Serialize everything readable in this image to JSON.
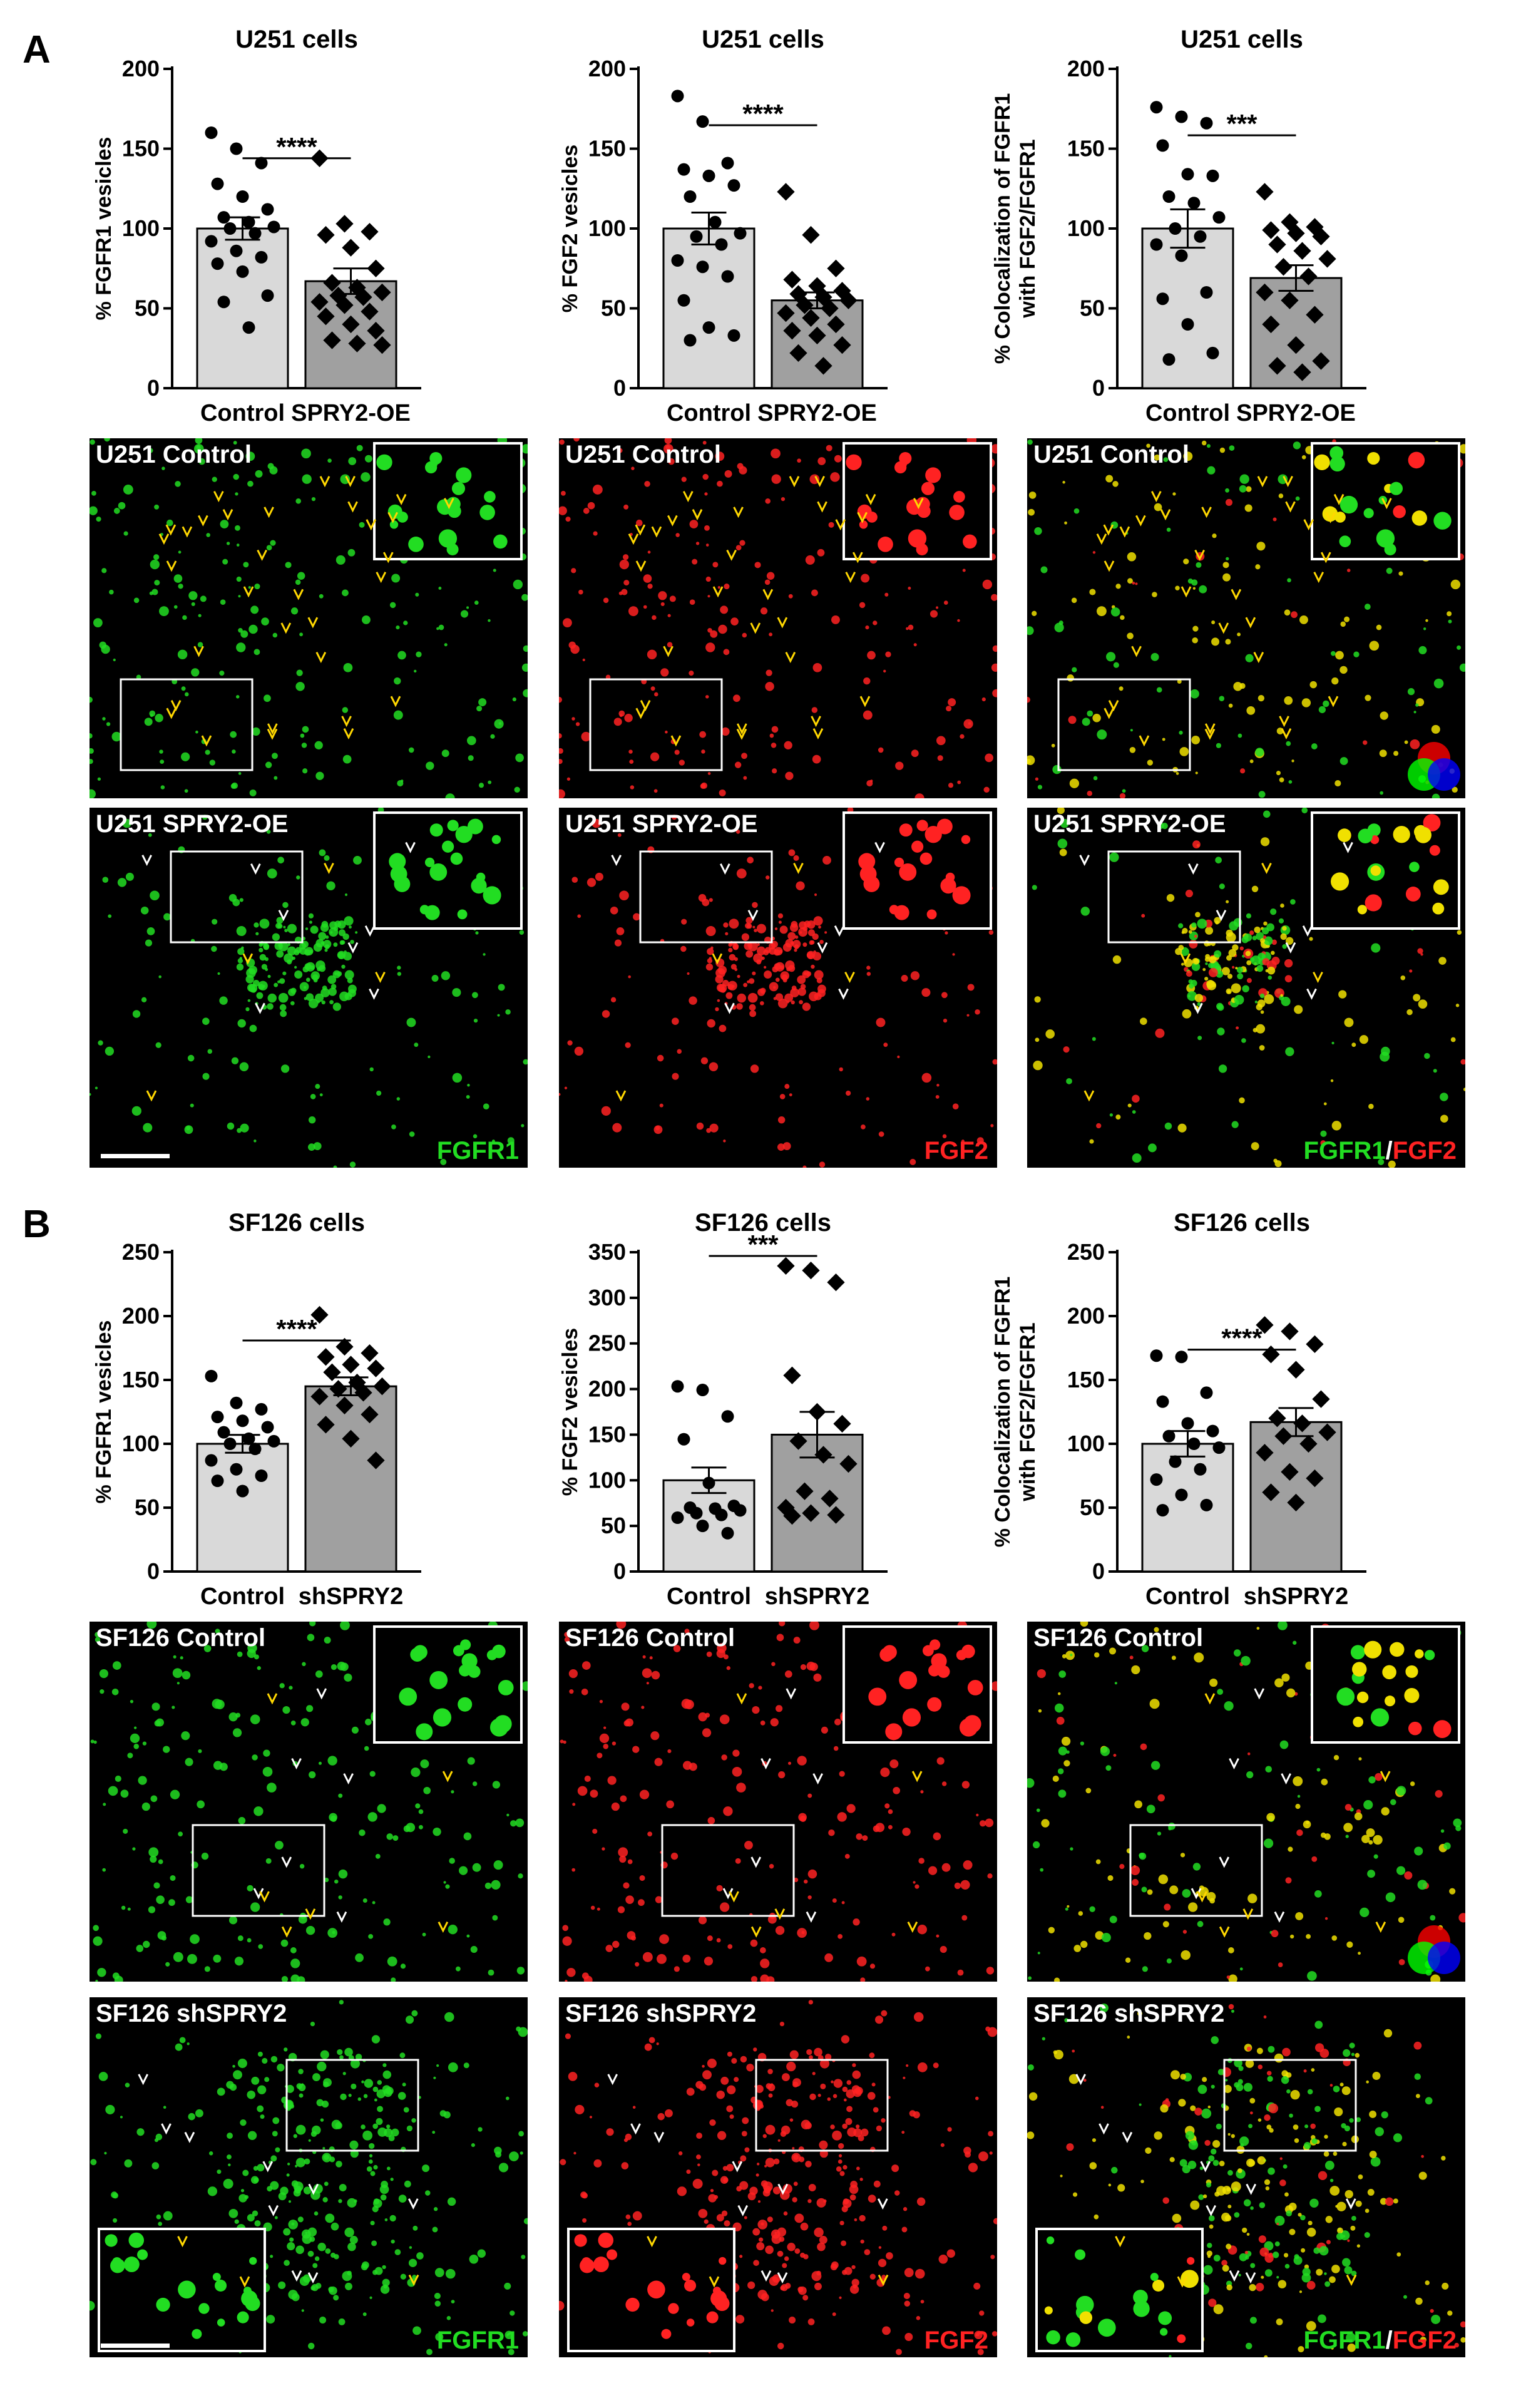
{
  "panels": {
    "A": "A",
    "B": "B"
  },
  "colors": {
    "control_bar": "#d9d9d9",
    "treated_bar": "#a0a0a0",
    "green": "#22dd22",
    "red": "#ff2222",
    "yellow": "#f0e000",
    "arrow_yellow": "#ffd700"
  },
  "chart_data": [
    {
      "type": "bar",
      "title": "U251 cells",
      "ylabel": "% FGFR1 vesicles",
      "categories": [
        "Control",
        "SPRY2-OE"
      ],
      "values": [
        100,
        67
      ],
      "sem": [
        7,
        8
      ],
      "ylim": [
        0,
        200
      ],
      "yticks": [
        "0",
        "50",
        "100",
        "150",
        "200"
      ],
      "significance": "****",
      "points": [
        [
          160,
          150,
          141,
          128,
          120,
          112,
          107,
          104,
          101,
          100,
          97,
          92,
          86,
          82,
          78,
          73,
          58,
          54,
          38
        ],
        [
          144,
          103,
          98,
          96,
          88,
          75,
          66,
          63,
          60,
          58,
          57,
          54,
          52,
          48,
          45,
          40,
          36,
          30,
          28,
          27
        ]
      ]
    },
    {
      "type": "bar",
      "title": "U251 cells",
      "ylabel": "% FGF2 vesicles",
      "categories": [
        "Control",
        "SPRY2-OE"
      ],
      "values": [
        100,
        55
      ],
      "sem": [
        10,
        5
      ],
      "ylim": [
        0,
        200
      ],
      "yticks": [
        "0",
        "50",
        "100",
        "150",
        "200"
      ],
      "significance": "****",
      "points": [
        [
          183,
          167,
          141,
          137,
          133,
          127,
          120,
          104,
          97,
          95,
          90,
          80,
          76,
          70,
          55,
          38,
          33,
          30
        ],
        [
          123,
          96,
          75,
          68,
          64,
          61,
          59,
          57,
          55,
          52,
          50,
          47,
          44,
          40,
          36,
          33,
          27,
          22,
          14
        ]
      ]
    },
    {
      "type": "bar",
      "title": "U251 cells",
      "ylabel": "% Colocalization of FGFR1 with FGF2/FGFR1",
      "categories": [
        "Control",
        "SPRY2-OE"
      ],
      "values": [
        100,
        69
      ],
      "sem": [
        12,
        8
      ],
      "ylim": [
        0,
        200
      ],
      "yticks": [
        "0",
        "50",
        "100",
        "150",
        "200"
      ],
      "significance": "***",
      "points": [
        [
          176,
          170,
          166,
          152,
          134,
          133,
          120,
          116,
          107,
          100,
          95,
          90,
          83,
          60,
          56,
          40,
          22,
          18
        ],
        [
          123,
          104,
          101,
          99,
          97,
          95,
          90,
          86,
          81,
          76,
          70,
          60,
          55,
          46,
          40,
          27,
          17,
          14,
          10
        ]
      ]
    },
    {
      "type": "bar",
      "title": "SF126 cells",
      "ylabel": "% FGFR1 vesicles",
      "categories": [
        "Control",
        "shSPRY2"
      ],
      "values": [
        100,
        145
      ],
      "sem": [
        7,
        7
      ],
      "ylim": [
        0,
        250
      ],
      "yticks": [
        "0",
        "50",
        "100",
        "150",
        "200",
        "250"
      ],
      "significance": "****",
      "points": [
        [
          153,
          132,
          127,
          121,
          118,
          113,
          109,
          104,
          102,
          100,
          96,
          87,
          80,
          75,
          71,
          63
        ],
        [
          201,
          176,
          171,
          168,
          162,
          159,
          156,
          148,
          145,
          143,
          140,
          137,
          130,
          123,
          115,
          104,
          87
        ]
      ]
    },
    {
      "type": "bar",
      "title": "SF126 cells",
      "ylabel": "% FGF2 vesicles",
      "categories": [
        "Control",
        "shSPRY2"
      ],
      "values": [
        100,
        150
      ],
      "sem": [
        14,
        25
      ],
      "ylim": [
        0,
        350
      ],
      "yticks": [
        "0",
        "50",
        "100",
        "150",
        "200",
        "250",
        "300",
        "350"
      ],
      "significance": "***",
      "points": [
        [
          203,
          199,
          170,
          145,
          97,
          72,
          70,
          69,
          67,
          64,
          62,
          59,
          50,
          42
        ],
        [
          335,
          330,
          317,
          215,
          175,
          162,
          143,
          128,
          118,
          88,
          80,
          70,
          64,
          62,
          61
        ]
      ]
    },
    {
      "type": "bar",
      "title": "SF126 cells",
      "ylabel": "% Colocalization of FGFR1 with FGF2/FGFR1",
      "categories": [
        "Control",
        "shSPRY2"
      ],
      "values": [
        100,
        117
      ],
      "sem": [
        10,
        11
      ],
      "ylim": [
        0,
        250
      ],
      "yticks": [
        "0",
        "50",
        "100",
        "150",
        "200",
        "250"
      ],
      "significance": "****",
      "points": [
        [
          169,
          168,
          140,
          133,
          116,
          110,
          106,
          100,
          97,
          86,
          80,
          72,
          60,
          52,
          48
        ],
        [
          193,
          188,
          178,
          170,
          158,
          135,
          120,
          116,
          109,
          106,
          100,
          93,
          78,
          73,
          62,
          54
        ]
      ]
    }
  ],
  "micrographs": [
    {
      "label": "U251 Control",
      "channel": "green",
      "inset": "top-right",
      "box": "bottom-left",
      "channels": [
        {
          "text": "",
          "c": "g"
        }
      ],
      "merge_icon": false
    },
    {
      "label": "U251 Control",
      "channel": "red",
      "inset": "top-right",
      "box": "bottom-left",
      "channels": [
        {
          "text": "",
          "c": "r"
        }
      ],
      "merge_icon": false
    },
    {
      "label": "U251 Control",
      "channel": "merge",
      "inset": "top-right",
      "box": "bottom-left",
      "channels": [
        {
          "text": "",
          "c": "g"
        }
      ],
      "merge_icon": true
    },
    {
      "label": "U251 SPRY2-OE",
      "channel": "green",
      "inset": "top-right",
      "box": "top-left",
      "channels": [
        {
          "text": "FGFR1",
          "c": "g"
        }
      ],
      "merge_icon": false,
      "scale_bar": true
    },
    {
      "label": "U251 SPRY2-OE",
      "channel": "red",
      "inset": "top-right",
      "box": "top-left",
      "channels": [
        {
          "text": "FGF2",
          "c": "r"
        }
      ],
      "merge_icon": false
    },
    {
      "label": "U251 SPRY2-OE",
      "channel": "merge",
      "inset": "top-right",
      "box": "top-left",
      "channels": [
        {
          "text": "FGFR1",
          "c": "g"
        },
        {
          "text": "/",
          "c": "w"
        },
        {
          "text": "FGF2",
          "c": "r"
        }
      ],
      "merge_icon": false
    },
    {
      "label": "SF126 Control",
      "channel": "green",
      "inset": "top-right",
      "box": "center",
      "channels": [
        {
          "text": "",
          "c": "g"
        }
      ],
      "merge_icon": false
    },
    {
      "label": "SF126 Control",
      "channel": "red",
      "inset": "top-right",
      "box": "center",
      "channels": [
        {
          "text": "",
          "c": "r"
        }
      ],
      "merge_icon": false
    },
    {
      "label": "SF126 Control",
      "channel": "merge",
      "inset": "top-right",
      "box": "center",
      "channels": [
        {
          "text": "",
          "c": "g"
        }
      ],
      "merge_icon": true
    },
    {
      "label": "SF126 shSPRY2",
      "channel": "green",
      "inset": "bottom-left",
      "box": "top-right",
      "channels": [
        {
          "text": "FGFR1",
          "c": "g"
        }
      ],
      "merge_icon": false,
      "scale_bar": true
    },
    {
      "label": "SF126 shSPRY2",
      "channel": "red",
      "inset": "bottom-left",
      "box": "top-right",
      "channels": [
        {
          "text": "FGF2",
          "c": "r"
        }
      ],
      "merge_icon": false
    },
    {
      "label": "SF126 shSPRY2",
      "channel": "merge",
      "inset": "bottom-left",
      "box": "top-right",
      "channels": [
        {
          "text": "FGFR1",
          "c": "g"
        },
        {
          "text": "/",
          "c": "w"
        },
        {
          "text": "FGF2",
          "c": "r"
        }
      ],
      "merge_icon": false
    }
  ]
}
